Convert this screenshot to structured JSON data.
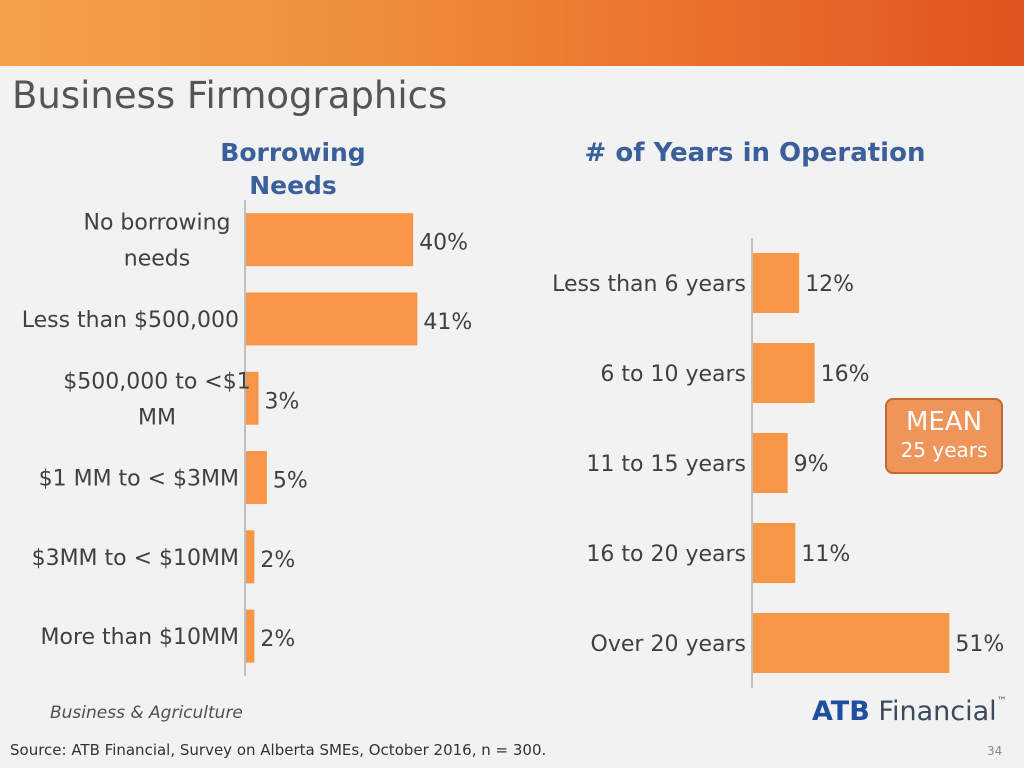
{
  "slide": {
    "title": "Business Firmographics",
    "division": "Business & Agriculture",
    "source": "Source:  ATB Financial, Survey on Alberta SMEs, October 2016, n = 300.",
    "page_number": "34",
    "logo": {
      "atb": "ATB",
      "financial": "Financial",
      "tm": "™"
    },
    "mean_box": {
      "title": "MEAN",
      "value": "25 years"
    }
  },
  "colors": {
    "bar": "#f79646",
    "title": "#3b5f9b",
    "band": "#e96f2a"
  },
  "chart_data": [
    {
      "type": "bar",
      "orientation": "horizontal",
      "title": "Borrowing Needs",
      "categories": [
        [
          "No borrowing",
          "needs"
        ],
        [
          "Less than $500,000"
        ],
        [
          "$500,000 to <$1",
          "MM"
        ],
        [
          "$1 MM to < $3MM"
        ],
        [
          "$3MM to < $10MM"
        ],
        [
          "More than $10MM"
        ]
      ],
      "values": [
        40,
        41,
        3,
        5,
        2,
        2
      ],
      "value_labels": [
        "40%",
        "41%",
        "3%",
        "5%",
        "2%",
        "2%"
      ],
      "xlim": [
        0,
        100
      ],
      "grid": false
    },
    {
      "type": "bar",
      "orientation": "horizontal",
      "title": "# of Years in Operation",
      "categories": [
        [
          "Less than 6 years"
        ],
        [
          "6 to 10 years"
        ],
        [
          "11 to 15 years"
        ],
        [
          "16 to 20 years"
        ],
        [
          "Over 20 years"
        ]
      ],
      "values": [
        12,
        16,
        9,
        11,
        51
      ],
      "value_labels": [
        "12%",
        "16%",
        "9%",
        "11%",
        "51%"
      ],
      "xlim": [
        0,
        100
      ],
      "grid": false
    }
  ]
}
